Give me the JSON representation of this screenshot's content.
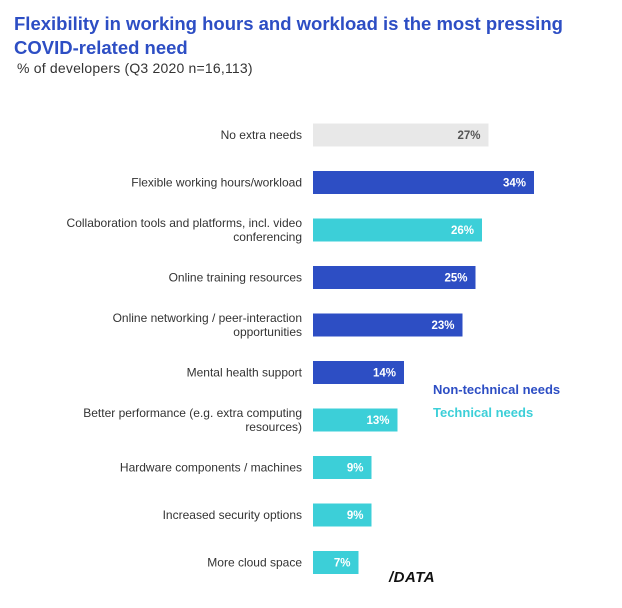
{
  "title": "Flexibility in working hours and workload is the most pressing COVID-related need",
  "subtitle": "% of developers (Q3 2020 n=16,113)",
  "logo": "/DATA",
  "colors": {
    "non_technical": "#2d4ec4",
    "technical": "#3ccfd8",
    "none": "#e8e8e8",
    "label_dark": "#555555",
    "label_light": "#ffffff"
  },
  "legend": {
    "non_technical": "Non-technical needs",
    "technical": "Technical needs"
  },
  "chart_data": {
    "type": "bar",
    "orientation": "horizontal",
    "title": "Flexibility in working hours and workload is the most pressing COVID-related need",
    "subtitle": "% of developers (Q3 2020 n=16,113)",
    "xlim": [
      0,
      100
    ],
    "unit": "%",
    "categories": [
      [
        "No extra needs"
      ],
      [
        "Flexible working hours/workload"
      ],
      [
        "Collaboration tools and platforms, incl. video",
        "conferencing"
      ],
      [
        "Online training resources"
      ],
      [
        "Online networking / peer-interaction",
        "opportunities"
      ],
      [
        "Mental health support"
      ],
      [
        "Better performance (e.g. extra computing",
        "resources)"
      ],
      [
        "Hardware components / machines"
      ],
      [
        "Increased security options"
      ],
      [
        "More cloud space"
      ]
    ],
    "values": [
      27,
      34,
      26,
      25,
      23,
      14,
      13,
      9,
      9,
      7
    ],
    "value_labels": [
      "27%",
      "34%",
      "26%",
      "25%",
      "23%",
      "14%",
      "13%",
      "9%",
      "9%",
      "7%"
    ],
    "need_type": [
      "none",
      "non_technical",
      "technical",
      "non_technical",
      "non_technical",
      "non_technical",
      "technical",
      "technical",
      "technical",
      "technical"
    ],
    "legend": [
      "Non-technical needs",
      "Technical needs"
    ],
    "legend_position": "right",
    "grid": false
  }
}
